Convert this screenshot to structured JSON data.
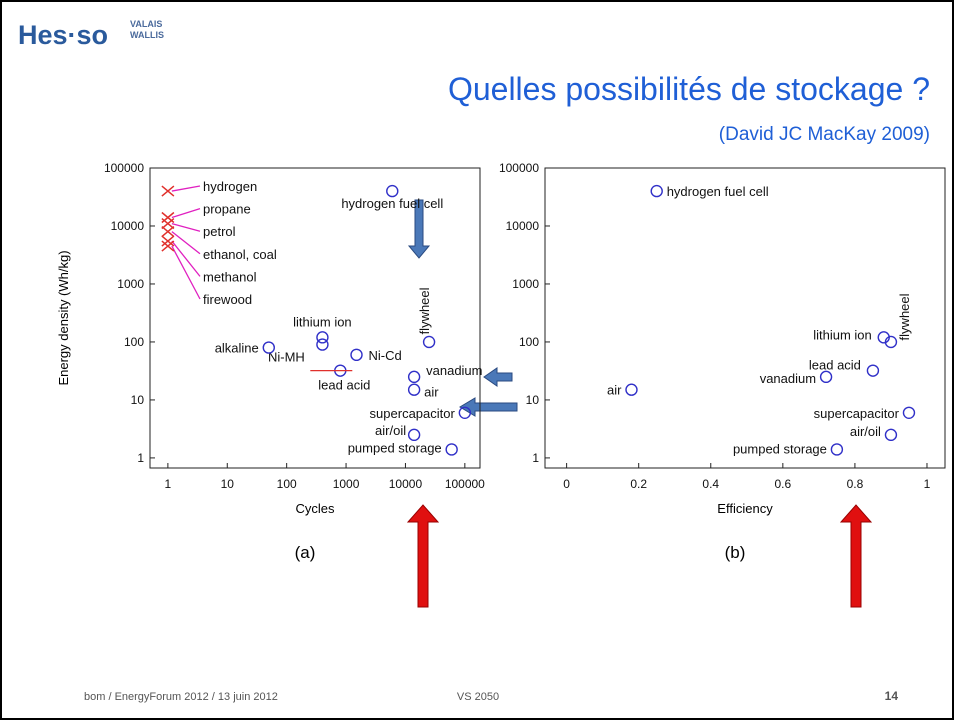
{
  "logo": {
    "name": "Hes·so",
    "region_1": "VALAIS",
    "region_2": "WALLIS"
  },
  "title": "Quelles possibilités de stockage ?",
  "subtitle": "(David JC MacKay 2009)",
  "footer": {
    "left": "bom  /  EnergyForum 2012  /  13 juin 2012",
    "center": "VS 2050",
    "page": "14"
  },
  "chart_data": [
    {
      "type": "scatter",
      "panel": "(a)",
      "xlabel": "Cycles",
      "ylabel": "Energy density (Wh/kg)",
      "xlog": true,
      "ylog": true,
      "xlim": [
        0.5,
        180000
      ],
      "ylim": [
        0.67,
        100000
      ],
      "xticks": [
        1,
        10,
        100,
        1000,
        10000,
        100000
      ],
      "yticks": [
        1,
        10,
        100,
        1000,
        10000,
        100000
      ],
      "series": [
        {
          "marker": "x",
          "color": "#e0302c",
          "label_color": "#e020c0",
          "labels": [
            "hydrogen",
            "propane",
            "petrol",
            "ethanol, coal",
            "methanol",
            "firewood"
          ],
          "x": [
            1,
            1,
            1,
            1,
            1,
            1
          ],
          "y": [
            40000,
            14000,
            11000,
            8000,
            5500,
            4500
          ]
        },
        {
          "marker": "circle",
          "color": "#3030c8",
          "labels": [
            "hydrogen fuel cell",
            "flywheel",
            "lithium ion",
            "Ni-MH",
            "alkaline",
            "Ni-Cd",
            "lead acid",
            "vanadium",
            "air",
            "supercapacitor",
            "air/oil",
            "pumped storage"
          ],
          "x": [
            6000,
            25000,
            400,
            400,
            50,
            1500,
            800,
            14000,
            14000,
            100000,
            14000,
            60000
          ],
          "y": [
            40000,
            100,
            120,
            90,
            80,
            60,
            32,
            25,
            15,
            6,
            2.5,
            1.4
          ]
        }
      ]
    },
    {
      "type": "scatter",
      "panel": "(b)",
      "xlabel": "Efficiency",
      "xlog": false,
      "ylog": true,
      "xlim": [
        -0.06,
        1.05
      ],
      "ylim": [
        0.67,
        100000
      ],
      "xticks": [
        0,
        0.2,
        0.4,
        0.6,
        0.8,
        1
      ],
      "yticks": [
        1,
        10,
        100,
        1000,
        10000,
        100000
      ],
      "series": [
        {
          "marker": "circle",
          "color": "#3030c8",
          "labels": [
            "hydrogen fuel cell",
            "air",
            "lithium ion",
            "flywheel",
            "lead acid",
            "vanadium",
            "supercapacitor",
            "air/oil",
            "pumped storage"
          ],
          "x": [
            0.25,
            0.18,
            0.88,
            0.9,
            0.85,
            0.72,
            0.95,
            0.9,
            0.75
          ],
          "y": [
            40000,
            15,
            120,
            100,
            32,
            25,
            6,
            2.5,
            1.4
          ]
        }
      ]
    }
  ]
}
